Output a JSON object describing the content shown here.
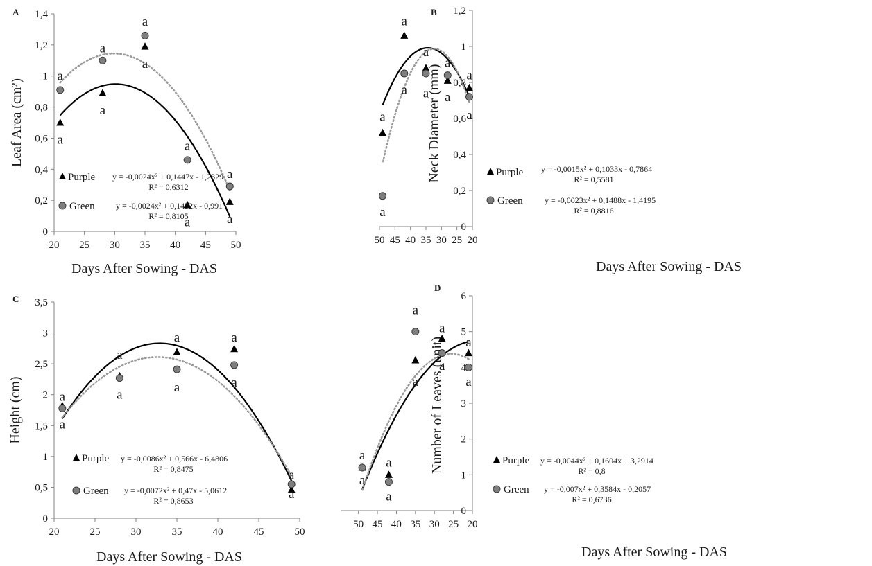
{
  "legend_labels": {
    "purple": "Purple",
    "green": "Green"
  },
  "chart_data": [
    {
      "type": "scatter",
      "panel": "A",
      "xlabel": "Days After Sowing - DAS",
      "ylabel": "Leaf Area (cm²)",
      "xlim": [
        20,
        50
      ],
      "xticks": [
        20,
        25,
        30,
        35,
        40,
        45,
        50
      ],
      "xtick_labels": [
        "20",
        "25",
        "30",
        "35",
        "40",
        "45",
        "50"
      ],
      "ylim": [
        0,
        1.4
      ],
      "yticks": [
        0,
        0.2,
        0.4,
        0.6,
        0.8,
        1,
        1.2,
        1.4
      ],
      "ytick_labels": [
        "0",
        "0,2",
        "0,4",
        "0,6",
        "0,8",
        "1",
        "1,2",
        "1,4"
      ],
      "x": [
        21,
        28,
        35,
        42,
        49
      ],
      "series": [
        {
          "name": "Purple",
          "marker": "triangle",
          "color": "#000000",
          "values": [
            0.7,
            0.89,
            1.19,
            0.17,
            0.19
          ],
          "trend": {
            "a": -0.0024,
            "b": 0.1447,
            "c": -1.2329,
            "style": "solid"
          },
          "equation": "y = -0,0024x² + 0,1447x - 1,2329",
          "r2": "R² = 0,6312"
        },
        {
          "name": "Green",
          "marker": "circle",
          "color": "#7f7f7f",
          "values": [
            0.91,
            1.1,
            1.26,
            0.46,
            0.29
          ],
          "trend": {
            "a": -0.0024,
            "b": 0.1432,
            "c": -0.991,
            "style": "dotted"
          },
          "equation": "y = -0,0024x² + 0,1432x - 0,991",
          "r2": "R² = 0,8105"
        }
      ],
      "annotations": [
        {
          "x": 21,
          "y": 1.0,
          "text": "a"
        },
        {
          "x": 21,
          "y": 0.59,
          "text": "a"
        },
        {
          "x": 28,
          "y": 1.18,
          "text": "a"
        },
        {
          "x": 28,
          "y": 0.78,
          "text": "a"
        },
        {
          "x": 35,
          "y": 1.35,
          "text": "a"
        },
        {
          "x": 35,
          "y": 1.08,
          "text": "a"
        },
        {
          "x": 42,
          "y": 0.55,
          "text": "a"
        },
        {
          "x": 42,
          "y": 0.06,
          "text": "a"
        },
        {
          "x": 49,
          "y": 0.37,
          "text": "a"
        },
        {
          "x": 49,
          "y": 0.08,
          "text": "a"
        }
      ]
    },
    {
      "type": "scatter",
      "panel": "B",
      "xlabel": "Days After Sowing - DAS",
      "ylabel": "Neck Diameter (mm)",
      "xlim": [
        20,
        50
      ],
      "xticks": [
        20,
        25,
        30,
        35,
        40,
        45,
        50
      ],
      "xtick_labels": [
        "20",
        "25",
        "30",
        "35",
        "40",
        "45",
        "50"
      ],
      "ylim": [
        0,
        1.2
      ],
      "yticks": [
        0,
        0.2,
        0.4,
        0.6,
        0.8,
        1,
        1.2
      ],
      "ytick_labels": [
        "0",
        "0,2",
        "0,4",
        "0,6",
        "0,8",
        "1",
        "1,2"
      ],
      "x": [
        21,
        28,
        35,
        42,
        49
      ],
      "series": [
        {
          "name": "Purple",
          "marker": "triangle",
          "color": "#000000",
          "values": [
            0.77,
            0.81,
            0.88,
            1.06,
            0.52
          ],
          "trend": {
            "a": -0.0015,
            "b": 0.1033,
            "c": -0.7864,
            "style": "solid"
          },
          "equation": "y = -0,0015x² + 0,1033x - 0,7864",
          "r2": "R² = 0,5581"
        },
        {
          "name": "Green",
          "marker": "circle",
          "color": "#7f7f7f",
          "values": [
            0.72,
            0.84,
            0.85,
            0.85,
            0.17
          ],
          "trend": {
            "a": -0.0023,
            "b": 0.1488,
            "c": -1.4195,
            "style": "dotted"
          },
          "equation": "y = -0,0023x² + 0,1488x - 1,4195",
          "r2": "R² = 0,8816"
        }
      ],
      "annotations": [
        {
          "x": 21,
          "y": 0.84,
          "text": "a"
        },
        {
          "x": 21,
          "y": 0.62,
          "text": "a"
        },
        {
          "x": 28,
          "y": 0.91,
          "text": "a"
        },
        {
          "x": 28,
          "y": 0.72,
          "text": "a"
        },
        {
          "x": 35,
          "y": 0.97,
          "text": "a"
        },
        {
          "x": 35,
          "y": 0.74,
          "text": "a"
        },
        {
          "x": 42,
          "y": 1.14,
          "text": "a"
        },
        {
          "x": 42,
          "y": 0.76,
          "text": "a"
        },
        {
          "x": 49,
          "y": 0.61,
          "text": "a"
        },
        {
          "x": 49,
          "y": 0.08,
          "text": "a"
        }
      ]
    },
    {
      "type": "scatter",
      "panel": "C",
      "xlabel": "Days After Sowing - DAS",
      "ylabel": "Height (cm)",
      "xlim": [
        20,
        50
      ],
      "xticks": [
        20,
        25,
        30,
        35,
        40,
        45,
        50
      ],
      "xtick_labels": [
        "20",
        "25",
        "30",
        "35",
        "40",
        "45",
        "50"
      ],
      "ylim": [
        0,
        3.5
      ],
      "yticks": [
        0,
        0.5,
        1,
        1.5,
        2,
        2.5,
        3,
        3.5
      ],
      "ytick_labels": [
        "0",
        "0,5",
        "1",
        "1,5",
        "2",
        "2,5",
        "3",
        "3,5"
      ],
      "x": [
        21,
        28,
        35,
        42,
        49
      ],
      "series": [
        {
          "name": "Purple",
          "marker": "triangle",
          "color": "#000000",
          "values": [
            1.82,
            2.3,
            2.69,
            2.74,
            0.46
          ],
          "trend": {
            "a": -0.0086,
            "b": 0.566,
            "c": -6.4806,
            "style": "solid"
          },
          "equation": "y = -0,0086x² + 0,566x - 6,4806",
          "r2": "R² = 0,8475"
        },
        {
          "name": "Green",
          "marker": "circle",
          "color": "#7f7f7f",
          "values": [
            1.78,
            2.27,
            2.41,
            2.48,
            0.55
          ],
          "trend": {
            "a": -0.0072,
            "b": 0.47,
            "c": -5.0612,
            "style": "dotted"
          },
          "equation": "y = -0,0072x² + 0,47x - 5,0612",
          "r2": "R² = 0,8653"
        }
      ],
      "annotations": [
        {
          "x": 21,
          "y": 1.97,
          "text": "a"
        },
        {
          "x": 21,
          "y": 1.52,
          "text": "a"
        },
        {
          "x": 28,
          "y": 2.65,
          "text": "a"
        },
        {
          "x": 28,
          "y": 2.0,
          "text": "a"
        },
        {
          "x": 35,
          "y": 2.93,
          "text": "a"
        },
        {
          "x": 35,
          "y": 2.12,
          "text": "a"
        },
        {
          "x": 42,
          "y": 2.93,
          "text": "a"
        },
        {
          "x": 42,
          "y": 2.2,
          "text": "a"
        },
        {
          "x": 49,
          "y": 0.7,
          "text": "a"
        },
        {
          "x": 49,
          "y": 0.39,
          "text": "a"
        }
      ]
    },
    {
      "type": "scatter",
      "panel": "D",
      "xlabel": "Days After Sowing - DAS",
      "ylabel": "Number of Leaves (unit)",
      "xlim": [
        20,
        50
      ],
      "xticks": [
        20,
        25,
        30,
        35,
        40,
        45,
        50
      ],
      "xtick_labels": [
        "20",
        "25",
        "30",
        "35",
        "40",
        "45",
        "50"
      ],
      "ylim": [
        0,
        6
      ],
      "yticks": [
        0,
        1,
        2,
        3,
        4,
        5,
        6
      ],
      "ytick_labels": [
        "0",
        "1",
        "2",
        "3",
        "4",
        "5",
        "6"
      ],
      "x": [
        21,
        28,
        35,
        42,
        49
      ],
      "series": [
        {
          "name": "Purple",
          "marker": "triangle",
          "color": "#000000",
          "values": [
            4.4,
            4.8,
            4.2,
            1.0,
            1.2
          ],
          "trend": {
            "a": -0.0044,
            "b": 0.1604,
            "c": 3.2914,
            "style": "solid"
          },
          "equation": "y = -0,0044x² + 0,1604x + 3,2914",
          "r2": "R² = 0,8"
        },
        {
          "name": "Green",
          "marker": "circle",
          "color": "#7f7f7f",
          "values": [
            4.0,
            4.4,
            5.0,
            0.8,
            1.2
          ],
          "trend": {
            "a": -0.007,
            "b": 0.3584,
            "c": -0.2057,
            "style": "dotted"
          },
          "equation": "y = -0,007x² + 0,3584x - 0,2057",
          "r2": "R² = 0,6736"
        }
      ],
      "annotations": [
        {
          "x": 21,
          "y": 4.7,
          "text": "a"
        },
        {
          "x": 21,
          "y": 3.6,
          "text": "a"
        },
        {
          "x": 28,
          "y": 5.1,
          "text": "a"
        },
        {
          "x": 28,
          "y": 4.05,
          "text": "a"
        },
        {
          "x": 35,
          "y": 5.6,
          "text": "a"
        },
        {
          "x": 35,
          "y": 3.6,
          "text": "a"
        },
        {
          "x": 42,
          "y": 1.35,
          "text": "a"
        },
        {
          "x": 42,
          "y": 0.4,
          "text": "a"
        },
        {
          "x": 49,
          "y": 1.55,
          "text": "a"
        },
        {
          "x": 49,
          "y": 0.85,
          "text": "a"
        }
      ]
    }
  ]
}
